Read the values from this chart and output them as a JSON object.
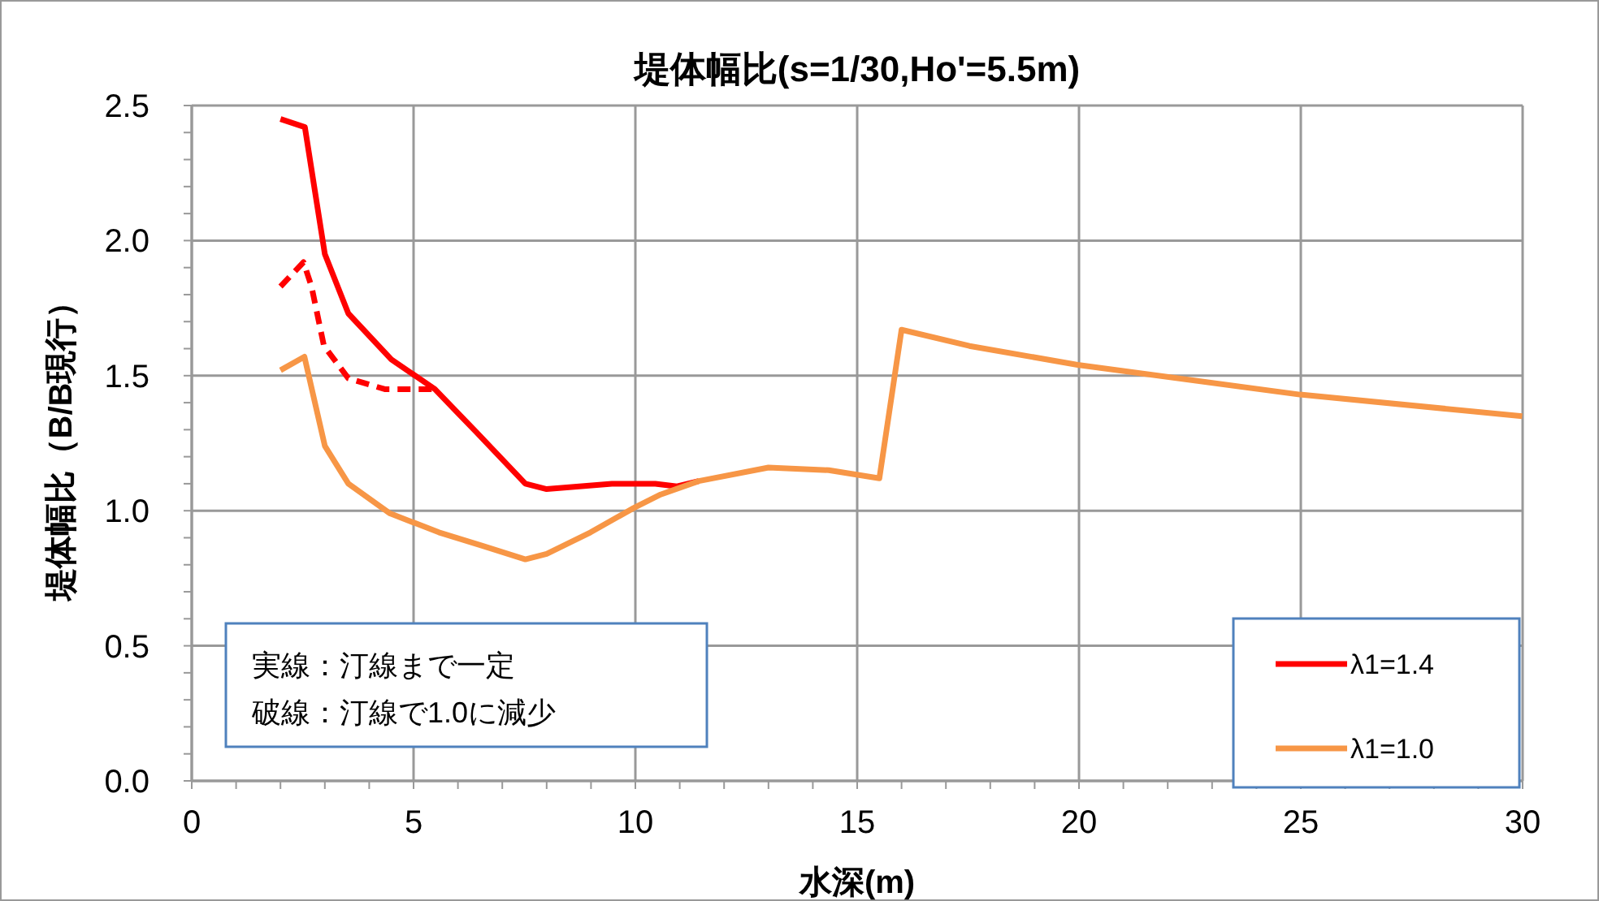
{
  "chart_data": {
    "type": "line",
    "title": "堤体幅比(s=1/30,Ho'=5.5m)",
    "xlabel": "水深(m)",
    "ylabel": "堤体幅比（B/B現行）",
    "xlim": [
      0,
      30
    ],
    "xticks": [
      0,
      5,
      10,
      15,
      20,
      25,
      30
    ],
    "ylim": [
      0,
      2.5
    ],
    "yticks": [
      {
        "value": 0,
        "label": "0.0"
      },
      {
        "value": 0.5,
        "label": "0.5"
      },
      {
        "value": 1,
        "label": "1.0"
      },
      {
        "value": 1.5,
        "label": "1.5"
      },
      {
        "value": 2,
        "label": "2.0"
      },
      {
        "value": 2.5,
        "label": "2.5"
      }
    ],
    "grid": true,
    "legend": "bottom right",
    "marker": "none",
    "annotations": [
      "実線：汀線まで一定",
      "破線：汀線で1.0に減少"
    ],
    "series": [
      {
        "name": "λ1=1.4",
        "color": "#ff0000",
        "line_style": "solid",
        "x": [
          2.0,
          2.55,
          3.0,
          3.53,
          4.5,
          5.48,
          6.42,
          7.52,
          8.0,
          9.47,
          10.45,
          10.94,
          11.43
        ],
        "values": [
          2.45,
          2.42,
          1.95,
          1.73,
          1.56,
          1.45,
          1.29,
          1.1,
          1.08,
          1.1,
          1.1,
          1.09,
          1.11
        ]
      },
      {
        "color": "#ff0000",
        "line_style": "dashed",
        "x": [
          2.0,
          2.52,
          2.7,
          2.98,
          3.53,
          4.35,
          5.48
        ],
        "values": [
          1.83,
          1.92,
          1.83,
          1.61,
          1.49,
          1.45,
          1.45
        ]
      },
      {
        "name": "λ1=1.0",
        "color": "#f79646",
        "line_style": "solid",
        "x": [
          2.0,
          2.54,
          3.0,
          3.53,
          4.47,
          5.57,
          6.55,
          7.52,
          8.0,
          8.99,
          9.96,
          10.57,
          11.43,
          13.0,
          14.36,
          15.5,
          16.0,
          17.53,
          19.97,
          24.98,
          29.99
        ],
        "values": [
          1.52,
          1.57,
          1.24,
          1.1,
          0.99,
          0.92,
          0.87,
          0.82,
          0.84,
          0.92,
          1.01,
          1.06,
          1.11,
          1.16,
          1.15,
          1.12,
          1.67,
          1.61,
          1.54,
          1.43,
          1.35
        ]
      }
    ]
  }
}
